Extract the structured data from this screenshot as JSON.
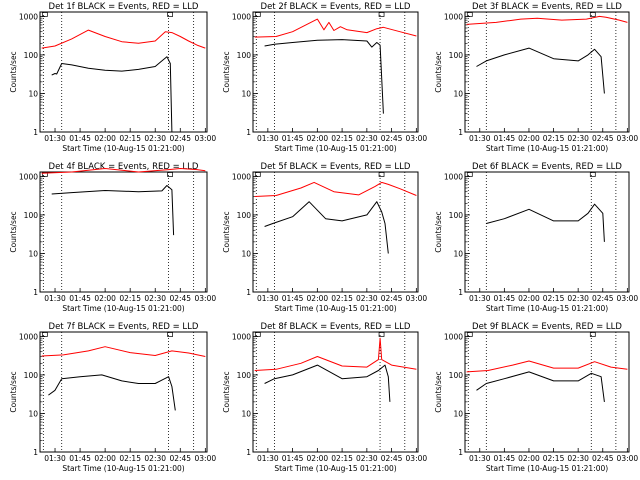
{
  "chart_data": {
    "type": "line",
    "x_tick_labels": [
      "01:30",
      "01:45",
      "02:00",
      "02:15",
      "02:30",
      "02:45",
      "03:00"
    ],
    "y_tick_labels": [
      "1",
      "10",
      "100",
      "1000"
    ],
    "y_scale": "log",
    "ylim": [
      1,
      1300
    ],
    "xlim": [
      "01:21",
      "03:01"
    ],
    "ylabel": "Counts/sec",
    "xlabel": "Start Time (10-Aug-15 01:21:00)",
    "colors": {
      "events": "#000000",
      "lld": "#ff0000",
      "axes": "#000000"
    },
    "vertical_lines_dotted": [
      "01:23",
      "01:34",
      "02:38",
      "02:53"
    ],
    "panels": [
      {
        "title": "Det 1f BLACK = Events, RED = LLD",
        "series": [
          {
            "color": "#000000",
            "x": [
              "01:28",
              "01:30",
              "01:31",
              "01:34",
              "01:40",
              "01:50",
              "02:00",
              "02:10",
              "02:20",
              "02:30",
              "02:34",
              "02:37",
              "02:39",
              "02:40",
              "02:41"
            ],
            "y": [
              30,
              33,
              32,
              60,
              55,
              45,
              40,
              38,
              42,
              50,
              70,
              90,
              60,
              1,
              1
            ]
          },
          {
            "color": "#ff0000",
            "x": [
              "01:22",
              "01:30",
              "01:40",
              "01:50",
              "02:00",
              "02:10",
              "02:20",
              "02:30",
              "02:36",
              "02:40",
              "02:45",
              "02:50",
              "02:55",
              "03:00"
            ],
            "y": [
              150,
              170,
              260,
              440,
              300,
              220,
              200,
              230,
              400,
              380,
              300,
              230,
              180,
              150
            ]
          }
        ]
      },
      {
        "title": "Det 2f BLACK = Events, RED = LLD",
        "series": [
          {
            "color": "#000000",
            "x": [
              "01:28",
              "01:34",
              "01:45",
              "02:00",
              "02:15",
              "02:30",
              "02:33",
              "02:36",
              "02:38",
              "02:40"
            ],
            "y": [
              170,
              190,
              210,
              240,
              250,
              230,
              160,
              210,
              180,
              3
            ]
          },
          {
            "color": "#ff0000",
            "x": [
              "01:22",
              "01:35",
              "01:45",
              "02:00",
              "02:04",
              "02:07",
              "02:10",
              "02:14",
              "02:18",
              "02:30",
              "02:36",
              "02:40",
              "02:50",
              "03:00"
            ],
            "y": [
              290,
              300,
              400,
              850,
              450,
              700,
              430,
              540,
              450,
              380,
              480,
              520,
              400,
              310
            ]
          }
        ]
      },
      {
        "title": "Det 3f BLACK = Events, RED = LLD",
        "series": [
          {
            "color": "#000000",
            "x": [
              "01:28",
              "01:34",
              "01:45",
              "02:00",
              "02:15",
              "02:30",
              "02:36",
              "02:40",
              "02:44",
              "02:46"
            ],
            "y": [
              50,
              70,
              100,
              150,
              80,
              70,
              100,
              140,
              90,
              10
            ]
          },
          {
            "color": "#ff0000",
            "x": [
              "01:22",
              "01:40",
              "01:55",
              "02:05",
              "02:20",
              "02:35",
              "02:43",
              "02:47",
              "02:55",
              "03:00"
            ],
            "y": [
              620,
              700,
              850,
              900,
              800,
              850,
              1000,
              950,
              800,
              700
            ]
          }
        ]
      },
      {
        "title": "Det 4f BLACK = Events, RED = LLD",
        "series": [
          {
            "color": "#000000",
            "x": [
              "01:28",
              "01:40",
              "02:00",
              "02:20",
              "02:34",
              "02:37",
              "02:40",
              "02:41"
            ],
            "y": [
              350,
              380,
              430,
              400,
              420,
              580,
              450,
              30
            ]
          },
          {
            "color": "#ff0000",
            "x": [
              "01:22",
              "01:40",
              "02:00",
              "02:20",
              "02:38",
              "02:45",
              "02:55",
              "03:00"
            ],
            "y": [
              1200,
              1300,
              1600,
              1300,
              1500,
              1600,
              1500,
              1400
            ]
          }
        ]
      },
      {
        "title": "Det 5f BLACK = Events, RED = LLD",
        "series": [
          {
            "color": "#000000",
            "x": [
              "01:28",
              "01:33",
              "01:45",
              "01:55",
              "02:05",
              "02:15",
              "02:30",
              "02:36",
              "02:39",
              "02:41",
              "02:43"
            ],
            "y": [
              50,
              60,
              90,
              220,
              80,
              70,
              100,
              220,
              120,
              60,
              10
            ]
          },
          {
            "color": "#ff0000",
            "x": [
              "01:22",
              "01:35",
              "01:50",
              "01:58",
              "02:10",
              "02:25",
              "02:35",
              "02:39",
              "02:43",
              "02:50",
              "03:00"
            ],
            "y": [
              300,
              320,
              500,
              700,
              400,
              330,
              550,
              700,
              620,
              480,
              320
            ]
          }
        ]
      },
      {
        "title": "Det 6f BLACK = Events, RED = LLD",
        "series": [
          {
            "color": "#000000",
            "x": [
              "01:34",
              "01:45",
              "02:00",
              "02:15",
              "02:30",
              "02:36",
              "02:40",
              "02:45",
              "02:46"
            ],
            "y": [
              60,
              80,
              140,
              70,
              70,
              110,
              190,
              110,
              20
            ]
          }
        ]
      },
      {
        "title": "Det 7f BLACK = Events, RED = LLD",
        "series": [
          {
            "color": "#000000",
            "x": [
              "01:26",
              "01:30",
              "01:34",
              "01:45",
              "01:58",
              "02:10",
              "02:20",
              "02:30",
              "02:38",
              "02:40",
              "02:42"
            ],
            "y": [
              30,
              40,
              80,
              90,
              100,
              70,
              60,
              60,
              90,
              50,
              12
            ]
          },
          {
            "color": "#ff0000",
            "x": [
              "01:22",
              "01:35",
              "01:50",
              "02:00",
              "02:15",
              "02:30",
              "02:40",
              "02:50",
              "03:00"
            ],
            "y": [
              310,
              330,
              420,
              540,
              380,
              320,
              420,
              370,
              300
            ]
          }
        ]
      },
      {
        "title": "Det 8f BLACK = Events, RED = LLD",
        "series": [
          {
            "color": "#000000",
            "x": [
              "01:28",
              "01:34",
              "01:45",
              "02:00",
              "02:15",
              "02:30",
              "02:37",
              "02:41",
              "02:43",
              "02:44"
            ],
            "y": [
              60,
              80,
              100,
              180,
              80,
              90,
              130,
              180,
              90,
              20
            ]
          },
          {
            "color": "#ff0000",
            "x": [
              "01:22",
              "01:35",
              "01:50",
              "02:00",
              "02:15",
              "02:30",
              "02:37",
              "02:38",
              "02:39",
              "02:45",
              "03:00"
            ],
            "y": [
              130,
              140,
              200,
              300,
              170,
              160,
              250,
              900,
              250,
              180,
              140
            ]
          }
        ]
      },
      {
        "title": "Det 9f BLACK = Events, RED = LLD",
        "series": [
          {
            "color": "#000000",
            "x": [
              "01:28",
              "01:34",
              "01:45",
              "02:00",
              "02:15",
              "02:30",
              "02:38",
              "02:44",
              "02:46"
            ],
            "y": [
              40,
              60,
              80,
              120,
              70,
              70,
              110,
              90,
              20
            ]
          },
          {
            "color": "#ff0000",
            "x": [
              "01:22",
              "01:35",
              "01:50",
              "02:00",
              "02:15",
              "02:30",
              "02:40",
              "02:50",
              "03:00"
            ],
            "y": [
              120,
              130,
              180,
              230,
              150,
              150,
              220,
              160,
              140
            ]
          }
        ]
      }
    ]
  }
}
